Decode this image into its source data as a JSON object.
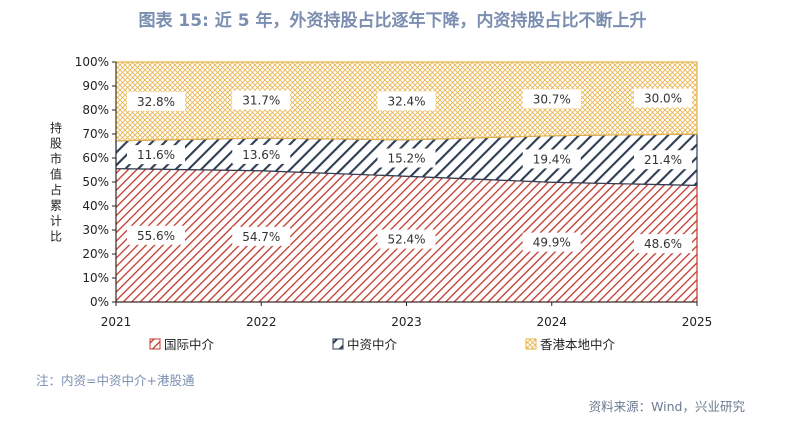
{
  "title": "图表 15: 近 5 年，外资持股占比逐年下降，内资持股占比不断上升",
  "note": "注：内资=中资中介+港股通",
  "source": "资料来源：Wind，兴业研究",
  "chart_data": {
    "type": "area",
    "stacked": true,
    "title": "",
    "x": [
      "2021",
      "2022",
      "2023",
      "2024",
      "2025"
    ],
    "ylabel": "持股市值占累计比",
    "ylim": [
      0,
      100
    ],
    "yticks": [
      "0%",
      "10%",
      "20%",
      "30%",
      "40%",
      "50%",
      "60%",
      "70%",
      "80%",
      "90%",
      "100%"
    ],
    "legend_position": "bottom",
    "series": [
      {
        "name": "国际中介",
        "values": [
          55.6,
          54.7,
          52.4,
          49.9,
          48.6
        ],
        "labels": [
          "55.6%",
          "54.7%",
          "52.4%",
          "49.9%",
          "48.6%"
        ],
        "color": "#c0392b",
        "pattern": "hatch-dense"
      },
      {
        "name": "中资中介",
        "values": [
          11.6,
          13.6,
          15.2,
          19.4,
          21.4
        ],
        "labels": [
          "11.6%",
          "13.6%",
          "15.2%",
          "19.4%",
          "21.4%"
        ],
        "color": "#2f3e55",
        "pattern": "hatch-wide"
      },
      {
        "name": "香港本地中介",
        "values": [
          32.8,
          31.7,
          32.4,
          30.7,
          30.0
        ],
        "labels": [
          "32.8%",
          "31.7%",
          "32.4%",
          "30.7%",
          "30.0%"
        ],
        "color": "#e8b34a",
        "pattern": "crosshatch"
      }
    ]
  }
}
